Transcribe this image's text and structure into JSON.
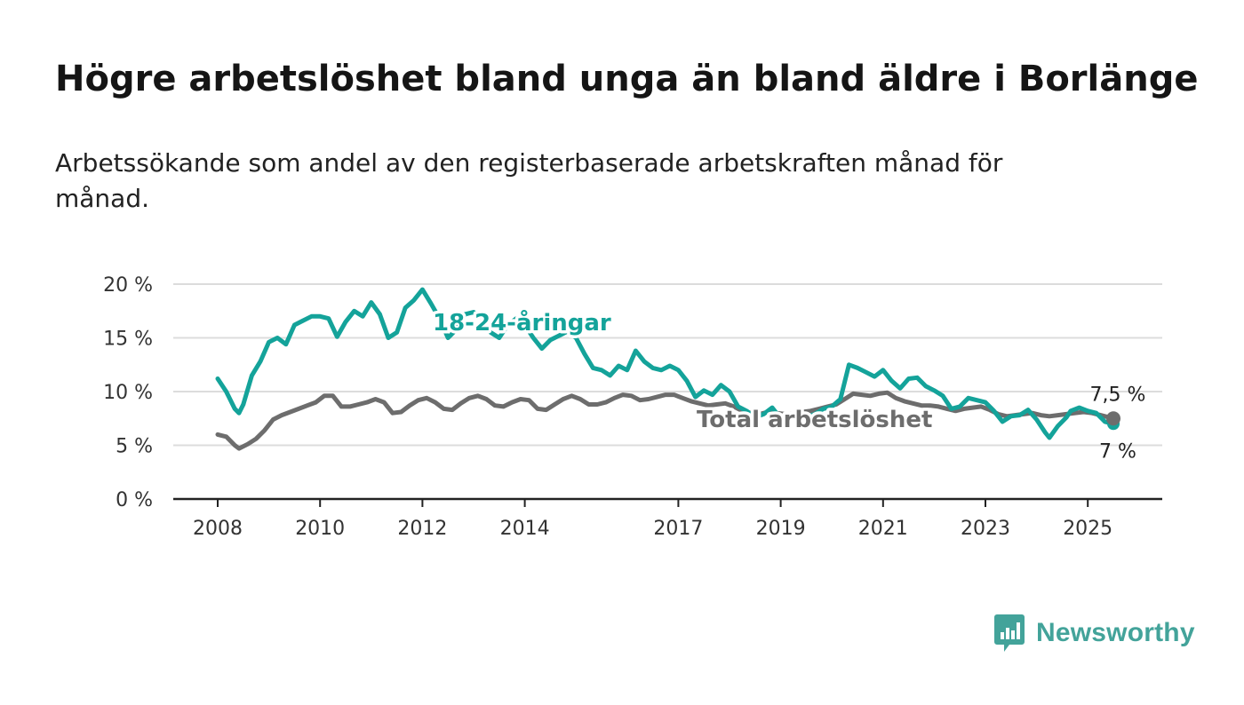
{
  "title": "Högre arbetslöshet bland unga än bland äldre i Borlänge",
  "subtitle": "Arbetssökande som andel av den registerbaserade arbetskraften månad för månad.",
  "brand": {
    "name": "Newsworthy",
    "icon": "chat-bar-chart-icon",
    "color": "#43a39a"
  },
  "colors": {
    "youth": "#14a39a",
    "total": "#6d6d6d",
    "grid": "#dcdcdc",
    "axis": "#222222"
  },
  "chart_data": {
    "type": "line",
    "title": "Högre arbetslöshet bland unga än bland äldre i Borlänge",
    "subtitle": "Arbetssökande som andel av den registerbaserade arbetskraften månad för månad.",
    "xlabel": "",
    "ylabel": "",
    "ylim": [
      0,
      20
    ],
    "xlim": [
      "2008-01",
      "2025-07"
    ],
    "y_ticks": [
      0,
      5,
      10,
      15,
      20
    ],
    "y_tick_labels": [
      "0 %",
      "5 %",
      "10 %",
      "15 %",
      "20 %"
    ],
    "x_ticks": [
      2008,
      2010,
      2012,
      2014,
      2017,
      2019,
      2021,
      2023,
      2025
    ],
    "x_tick_labels": [
      "2008",
      "2010",
      "2012",
      "2014",
      "2017",
      "2019",
      "2021",
      "2023",
      "2025"
    ],
    "grid": true,
    "legend": "inline labels",
    "series": [
      {
        "name": "18-24-åringar",
        "color": "#14a39a",
        "end_label": "7 %",
        "points": [
          [
            "2008-01",
            11.2
          ],
          [
            "2008-03",
            10.0
          ],
          [
            "2008-05",
            8.4
          ],
          [
            "2008-06",
            8.0
          ],
          [
            "2008-07",
            8.8
          ],
          [
            "2008-09",
            11.5
          ],
          [
            "2008-11",
            12.8
          ],
          [
            "2009-01",
            14.6
          ],
          [
            "2009-03",
            15.0
          ],
          [
            "2009-05",
            14.4
          ],
          [
            "2009-07",
            16.2
          ],
          [
            "2009-09",
            16.6
          ],
          [
            "2009-11",
            17.0
          ],
          [
            "2010-01",
            17.0
          ],
          [
            "2010-03",
            16.8
          ],
          [
            "2010-05",
            15.1
          ],
          [
            "2010-07",
            16.5
          ],
          [
            "2010-09",
            17.5
          ],
          [
            "2010-11",
            17.0
          ],
          [
            "2011-01",
            18.3
          ],
          [
            "2011-03",
            17.2
          ],
          [
            "2011-05",
            15.0
          ],
          [
            "2011-07",
            15.5
          ],
          [
            "2011-09",
            17.8
          ],
          [
            "2011-11",
            18.5
          ],
          [
            "2012-01",
            19.5
          ],
          [
            "2012-03",
            18.2
          ],
          [
            "2012-05",
            16.8
          ],
          [
            "2012-07",
            15.0
          ],
          [
            "2012-09",
            15.8
          ],
          [
            "2012-11",
            17.2
          ],
          [
            "2013-01",
            17.4
          ],
          [
            "2013-03",
            16.8
          ],
          [
            "2013-05",
            15.5
          ],
          [
            "2013-07",
            15.0
          ],
          [
            "2013-09",
            16.2
          ],
          [
            "2013-11",
            16.8
          ],
          [
            "2014-01",
            16.2
          ],
          [
            "2014-03",
            15.0
          ],
          [
            "2014-05",
            14.0
          ],
          [
            "2014-07",
            14.8
          ],
          [
            "2014-09",
            15.2
          ],
          [
            "2014-11",
            15.6
          ],
          [
            "2015-01",
            15.0
          ],
          [
            "2015-03",
            13.5
          ],
          [
            "2015-05",
            12.2
          ],
          [
            "2015-07",
            12.0
          ],
          [
            "2015-09",
            11.5
          ],
          [
            "2015-11",
            12.4
          ],
          [
            "2016-01",
            12.0
          ],
          [
            "2016-03",
            13.8
          ],
          [
            "2016-05",
            12.8
          ],
          [
            "2016-07",
            12.2
          ],
          [
            "2016-09",
            12.0
          ],
          [
            "2016-11",
            12.4
          ],
          [
            "2017-01",
            12.0
          ],
          [
            "2017-03",
            11.0
          ],
          [
            "2017-05",
            9.5
          ],
          [
            "2017-07",
            10.1
          ],
          [
            "2017-09",
            9.7
          ],
          [
            "2017-11",
            10.6
          ],
          [
            "2018-01",
            10.0
          ],
          [
            "2018-03",
            8.6
          ],
          [
            "2018-05",
            8.2
          ],
          [
            "2018-07",
            7.6
          ],
          [
            "2018-09",
            7.9
          ],
          [
            "2018-11",
            8.5
          ],
          [
            "2019-01",
            7.5
          ],
          [
            "2019-03",
            7.7
          ],
          [
            "2019-05",
            8.0
          ],
          [
            "2019-07",
            7.6
          ],
          [
            "2019-09",
            7.9
          ],
          [
            "2019-11",
            8.4
          ],
          [
            "2020-01",
            8.6
          ],
          [
            "2020-03",
            9.3
          ],
          [
            "2020-05",
            12.5
          ],
          [
            "2020-07",
            12.2
          ],
          [
            "2020-09",
            11.8
          ],
          [
            "2020-11",
            11.4
          ],
          [
            "2021-01",
            12.0
          ],
          [
            "2021-03",
            11.0
          ],
          [
            "2021-05",
            10.3
          ],
          [
            "2021-07",
            11.2
          ],
          [
            "2021-09",
            11.3
          ],
          [
            "2021-11",
            10.5
          ],
          [
            "2022-01",
            10.1
          ],
          [
            "2022-03",
            9.6
          ],
          [
            "2022-05",
            8.4
          ],
          [
            "2022-07",
            8.6
          ],
          [
            "2022-09",
            9.4
          ],
          [
            "2022-11",
            9.2
          ],
          [
            "2023-01",
            9.0
          ],
          [
            "2023-03",
            8.2
          ],
          [
            "2023-05",
            7.2
          ],
          [
            "2023-07",
            7.7
          ],
          [
            "2023-09",
            7.8
          ],
          [
            "2023-11",
            8.3
          ],
          [
            "2024-01",
            7.4
          ],
          [
            "2024-03",
            6.2
          ],
          [
            "2024-04",
            5.7
          ],
          [
            "2024-06",
            6.8
          ],
          [
            "2024-08",
            7.6
          ],
          [
            "2024-09",
            8.2
          ],
          [
            "2024-11",
            8.5
          ],
          [
            "2025-01",
            8.2
          ],
          [
            "2025-03",
            8.0
          ],
          [
            "2025-05",
            7.2
          ],
          [
            "2025-07",
            7.0
          ]
        ]
      },
      {
        "name": "Total arbetslöshet",
        "color": "#6d6d6d",
        "end_label": "7,5 %",
        "points": [
          [
            "2008-01",
            6.0
          ],
          [
            "2008-03",
            5.8
          ],
          [
            "2008-05",
            5.0
          ],
          [
            "2008-06",
            4.7
          ],
          [
            "2008-08",
            5.1
          ],
          [
            "2008-10",
            5.6
          ],
          [
            "2008-12",
            6.4
          ],
          [
            "2009-02",
            7.4
          ],
          [
            "2009-04",
            7.8
          ],
          [
            "2009-06",
            8.1
          ],
          [
            "2009-08",
            8.4
          ],
          [
            "2009-10",
            8.7
          ],
          [
            "2009-12",
            9.0
          ],
          [
            "2010-02",
            9.6
          ],
          [
            "2010-04",
            9.6
          ],
          [
            "2010-06",
            8.6
          ],
          [
            "2010-08",
            8.6
          ],
          [
            "2010-10",
            8.8
          ],
          [
            "2010-12",
            9.0
          ],
          [
            "2011-02",
            9.3
          ],
          [
            "2011-04",
            9.0
          ],
          [
            "2011-06",
            8.0
          ],
          [
            "2011-08",
            8.1
          ],
          [
            "2011-10",
            8.7
          ],
          [
            "2011-12",
            9.2
          ],
          [
            "2012-02",
            9.4
          ],
          [
            "2012-04",
            9.0
          ],
          [
            "2012-06",
            8.4
          ],
          [
            "2012-08",
            8.3
          ],
          [
            "2012-10",
            8.9
          ],
          [
            "2012-12",
            9.4
          ],
          [
            "2013-02",
            9.6
          ],
          [
            "2013-04",
            9.3
          ],
          [
            "2013-06",
            8.7
          ],
          [
            "2013-08",
            8.6
          ],
          [
            "2013-10",
            9.0
          ],
          [
            "2013-12",
            9.3
          ],
          [
            "2014-02",
            9.2
          ],
          [
            "2014-04",
            8.4
          ],
          [
            "2014-06",
            8.3
          ],
          [
            "2014-08",
            8.8
          ],
          [
            "2014-10",
            9.3
          ],
          [
            "2014-12",
            9.6
          ],
          [
            "2015-02",
            9.3
          ],
          [
            "2015-04",
            8.8
          ],
          [
            "2015-06",
            8.8
          ],
          [
            "2015-08",
            9.0
          ],
          [
            "2015-10",
            9.4
          ],
          [
            "2015-12",
            9.7
          ],
          [
            "2016-02",
            9.6
          ],
          [
            "2016-04",
            9.2
          ],
          [
            "2016-06",
            9.3
          ],
          [
            "2016-08",
            9.5
          ],
          [
            "2016-10",
            9.7
          ],
          [
            "2016-12",
            9.7
          ],
          [
            "2017-02",
            9.4
          ],
          [
            "2017-04",
            9.1
          ],
          [
            "2017-06",
            8.9
          ],
          [
            "2017-08",
            8.7
          ],
          [
            "2017-10",
            8.8
          ],
          [
            "2017-12",
            8.9
          ],
          [
            "2018-02",
            8.6
          ],
          [
            "2018-04",
            8.2
          ],
          [
            "2018-06",
            8.0
          ],
          [
            "2018-08",
            7.9
          ],
          [
            "2018-10",
            8.1
          ],
          [
            "2018-12",
            8.0
          ],
          [
            "2019-02",
            7.9
          ],
          [
            "2019-04",
            7.9
          ],
          [
            "2019-06",
            8.1
          ],
          [
            "2019-08",
            8.2
          ],
          [
            "2019-10",
            8.4
          ],
          [
            "2019-12",
            8.6
          ],
          [
            "2020-02",
            8.8
          ],
          [
            "2020-04",
            9.3
          ],
          [
            "2020-06",
            9.8
          ],
          [
            "2020-08",
            9.7
          ],
          [
            "2020-10",
            9.6
          ],
          [
            "2020-12",
            9.8
          ],
          [
            "2021-02",
            9.9
          ],
          [
            "2021-04",
            9.4
          ],
          [
            "2021-06",
            9.1
          ],
          [
            "2021-08",
            8.9
          ],
          [
            "2021-10",
            8.7
          ],
          [
            "2021-12",
            8.7
          ],
          [
            "2022-02",
            8.6
          ],
          [
            "2022-04",
            8.4
          ],
          [
            "2022-06",
            8.2
          ],
          [
            "2022-08",
            8.4
          ],
          [
            "2022-10",
            8.5
          ],
          [
            "2022-12",
            8.6
          ],
          [
            "2023-02",
            8.3
          ],
          [
            "2023-04",
            7.9
          ],
          [
            "2023-06",
            7.7
          ],
          [
            "2023-08",
            7.8
          ],
          [
            "2023-10",
            7.9
          ],
          [
            "2023-12",
            8.0
          ],
          [
            "2024-02",
            7.8
          ],
          [
            "2024-04",
            7.7
          ],
          [
            "2024-06",
            7.8
          ],
          [
            "2024-08",
            7.9
          ],
          [
            "2024-10",
            8.0
          ],
          [
            "2024-12",
            8.1
          ],
          [
            "2025-02",
            8.0
          ],
          [
            "2025-04",
            7.8
          ],
          [
            "2025-07",
            7.5
          ]
        ]
      }
    ]
  }
}
